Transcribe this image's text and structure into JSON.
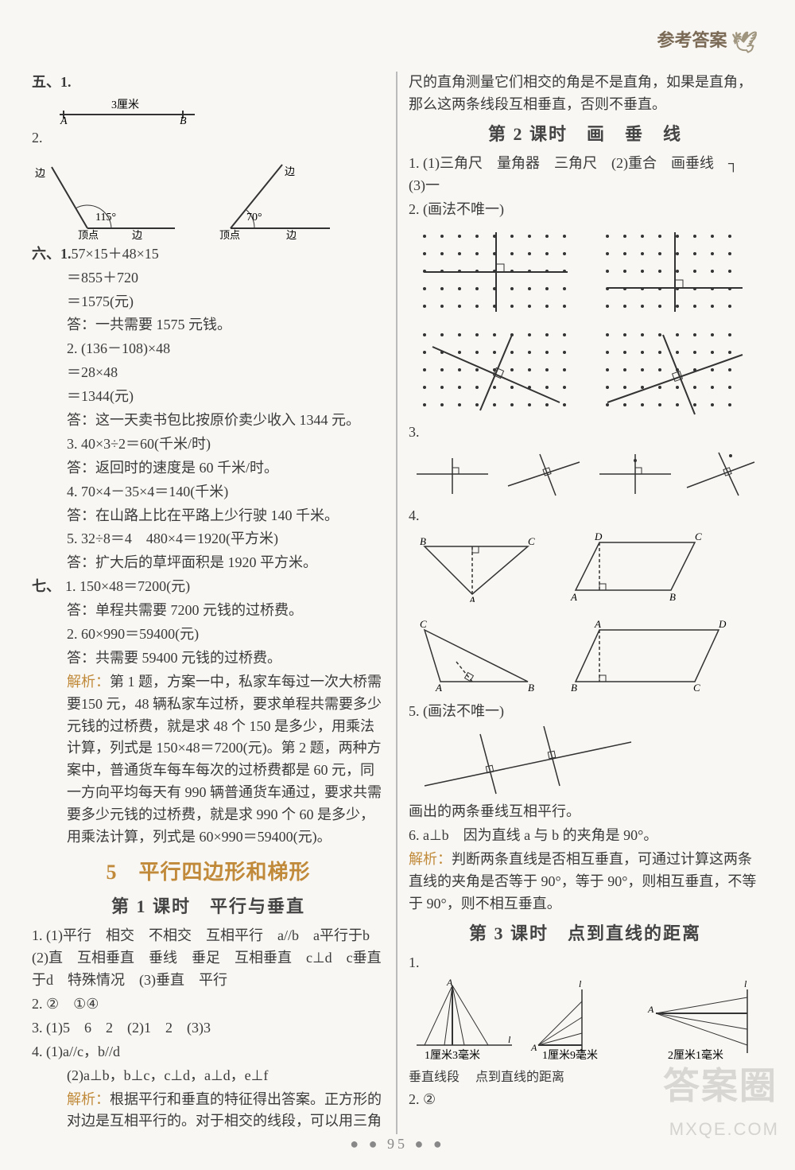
{
  "header": {
    "title": "参考答案"
  },
  "pagenum": "95",
  "watermark": {
    "line1": "答案圈",
    "line2": "MXQE.COM"
  },
  "left": {
    "five": {
      "label": "五、1.",
      "fig1": {
        "len_label": "3厘米",
        "pointA": "A",
        "pointB": "B"
      },
      "sub2": "2.",
      "fig2": {
        "angle1": "115°",
        "angle2": "70°",
        "side": "边",
        "vertex": "顶点"
      }
    },
    "six": {
      "label": "六、1.",
      "l1": "57×15＋48×15",
      "l2": "＝855＋720",
      "l3": "＝1575(元)",
      "l4": "答：一共需要 1575 元钱。",
      "s2l1": "2.  (136－108)×48",
      "s2l2": "＝28×48",
      "s2l3": "＝1344(元)",
      "s2l4": "答：这一天卖书包比按原价卖少收入 1344 元。",
      "s3l1": "3.  40×3÷2＝60(千米/时)",
      "s3l2": "答：返回时的速度是 60 千米/时。",
      "s4l1": "4.  70×4－35×4＝140(千米)",
      "s4l2": "答：在山路上比在平路上少行驶 140 千米。",
      "s5l1": "5.  32÷8＝4　480×4＝1920(平方米)",
      "s5l2": "答：扩大后的草坪面积是 1920 平方米。"
    },
    "seven": {
      "label": "七、",
      "l1": "1. 150×48＝7200(元)",
      "l2": "答：单程共需要 7200 元钱的过桥费。",
      "l3": "2. 60×990＝59400(元)",
      "l4": "答：共需要 59400 元钱的过桥费。",
      "an_label": "解析：",
      "an": "第 1 题，方案一中，私家车每过一次大桥需要150 元，48 辆私家车过桥，要求单程共需要多少元钱的过桥费，就是求 48 个 150 是多少，用乘法计算，列式是 150×48＝7200(元)。第 2 题，两种方案中，普通货车每车每次的过桥费都是 60 元，同一方向平均每天有 990 辆普通货车通过，要求共需要多少元钱的过桥费，就是求 990 个 60 是多少，用乘法计算，列式是 60×990＝59400(元)。"
    },
    "chapter": "5　平行四边形和梯形",
    "lesson1": {
      "title": "第 1 课时　平行与垂直",
      "q1": "1. (1)平行　相交　不相交　互相平行　a//b　a平行于b　(2)直　互相垂直　垂线　垂足　互相垂直　c⊥d　c垂直于d　特殊情况　(3)垂直　平行",
      "q2": "2.  ②　①④",
      "q3": "3.  (1)5　6　2　(2)1　2　(3)3",
      "q4a": "4.  (1)a//c，b//d",
      "q4b": "(2)a⊥b，b⊥c，c⊥d，a⊥d，e⊥f",
      "q4an_label": "解析：",
      "q4an": "根据平行和垂直的特征得出答案。正方形的对边是互相平行的。对于相交的线段，可以用三角"
    }
  },
  "right": {
    "cont": "尺的直角测量它们相交的角是不是直角，如果是直角，那么这两条线段互相垂直，否则不垂直。",
    "lesson2": {
      "title": "第 2 课时　画　垂　线",
      "q1": "1.  (1)三角尺　量角器　三角尺　(2)重合　画垂线　┐　(3)一",
      "q2": "2.  (画法不唯一)",
      "q3": "3.",
      "q4": "4.",
      "q4labels": {
        "A": "A",
        "B": "B",
        "C": "C",
        "D": "D"
      },
      "q5": "5.  (画法不唯一)",
      "q5note": "画出的两条垂线互相平行。",
      "q6": "6.  a⊥b　因为直线 a 与 b 的夹角是 90°。",
      "q6an_label": "解析：",
      "q6an": "判断两条直线是否相互垂直，可通过计算这两条直线的夹角是否等于 90°，等于 90°，则相互垂直，不等于 90°，则不相互垂直。"
    },
    "lesson3": {
      "title": "第 3 课时　点到直线的距离",
      "q1": "1.",
      "q1labels": {
        "m1": "1厘米3毫米",
        "m2": "1厘米9毫米",
        "m3": "2厘米1毫米",
        "c1": "垂直线段",
        "c2": "点到直线的距离",
        "A": "A",
        "l": "l"
      },
      "q2": "2.  ②"
    }
  },
  "style": {
    "page_bg": "#f8f7f3",
    "text_color": "#3a3a3a",
    "accent_color": "#c08a3a",
    "fontsize_body": 18,
    "fontsize_heading": 22,
    "fontsize_chapter": 26,
    "stroke": "#333333",
    "dot_color": "#333333"
  }
}
